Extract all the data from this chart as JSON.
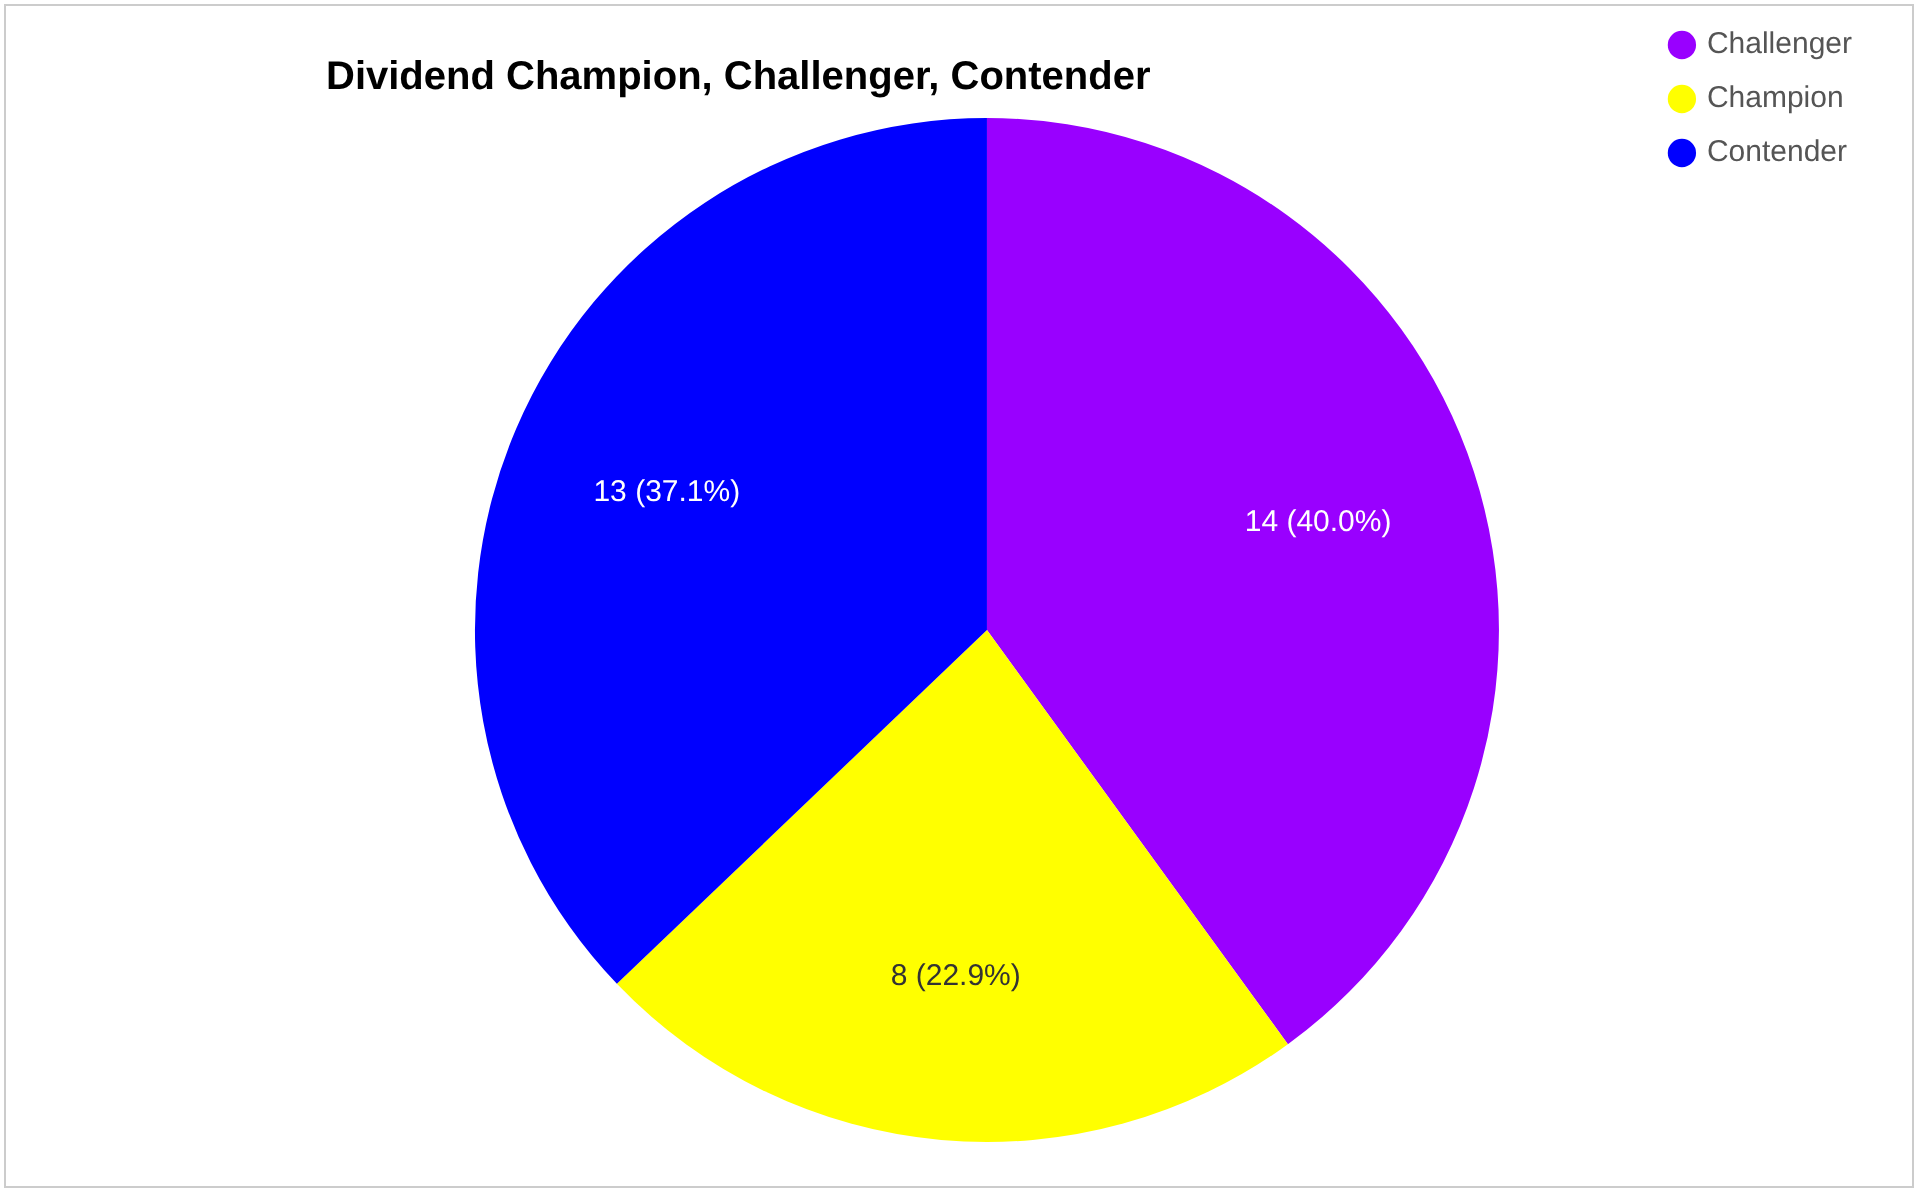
{
  "chart_data": {
    "type": "pie",
    "title": "Dividend Champion, Challenger, Contender",
    "categories": [
      "Challenger",
      "Champion",
      "Contender"
    ],
    "values": [
      14,
      8,
      13
    ],
    "colors": [
      "#9900ff",
      "#ffff00",
      "#0000ff"
    ],
    "value_labels": [
      "14 (40.0%)",
      "8 (22.9%)",
      "13 (37.1%)"
    ],
    "legend": "top right"
  }
}
